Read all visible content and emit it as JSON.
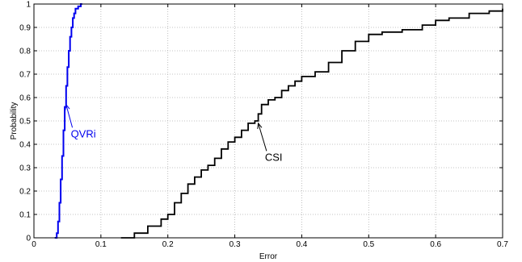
{
  "chart_data": {
    "type": "line",
    "title": "",
    "xlabel": "Error",
    "ylabel": "Probability",
    "xlim": [
      0,
      0.7
    ],
    "ylim": [
      0,
      1
    ],
    "xticks": [
      "0",
      "0.1",
      "0.2",
      "0.3",
      "0.4",
      "0.5",
      "0.6",
      "0.7"
    ],
    "yticks": [
      "0",
      "0.1",
      "0.2",
      "0.3",
      "0.4",
      "0.5",
      "0.6",
      "0.7",
      "0.8",
      "0.9",
      "1"
    ],
    "grid": true,
    "series": [
      {
        "name": "QVRi",
        "color": "#0000ee",
        "x": [
          0.031,
          0.034,
          0.036,
          0.038,
          0.04,
          0.042,
          0.044,
          0.046,
          0.048,
          0.05,
          0.052,
          0.054,
          0.056,
          0.058,
          0.06,
          0.062,
          0.066,
          0.07,
          0.072
        ],
        "y": [
          0.0,
          0.02,
          0.07,
          0.15,
          0.25,
          0.35,
          0.46,
          0.56,
          0.65,
          0.73,
          0.8,
          0.86,
          0.9,
          0.94,
          0.96,
          0.98,
          0.99,
          1.0,
          1.0
        ]
      },
      {
        "name": "CSI",
        "color": "#000000",
        "x": [
          0.13,
          0.15,
          0.17,
          0.19,
          0.2,
          0.21,
          0.22,
          0.23,
          0.24,
          0.25,
          0.26,
          0.27,
          0.28,
          0.29,
          0.3,
          0.31,
          0.32,
          0.33,
          0.335,
          0.34,
          0.35,
          0.36,
          0.37,
          0.38,
          0.39,
          0.4,
          0.42,
          0.44,
          0.46,
          0.48,
          0.5,
          0.52,
          0.55,
          0.58,
          0.6,
          0.62,
          0.65,
          0.68,
          0.7
        ],
        "y": [
          0.0,
          0.02,
          0.05,
          0.08,
          0.1,
          0.15,
          0.19,
          0.23,
          0.26,
          0.29,
          0.31,
          0.34,
          0.38,
          0.41,
          0.43,
          0.46,
          0.49,
          0.5,
          0.53,
          0.57,
          0.59,
          0.6,
          0.63,
          0.65,
          0.67,
          0.69,
          0.71,
          0.75,
          0.8,
          0.84,
          0.87,
          0.88,
          0.89,
          0.91,
          0.93,
          0.94,
          0.96,
          0.97,
          0.98
        ]
      }
    ],
    "annotations": [
      {
        "text": "QVRi",
        "color": "#0000ee",
        "series": 0,
        "at": [
          0.048,
          0.57
        ],
        "text_at": [
          0.055,
          0.43
        ]
      },
      {
        "text": "CSI",
        "color": "#000000",
        "series": 1,
        "at": [
          0.335,
          0.49
        ],
        "text_at": [
          0.345,
          0.33
        ]
      }
    ]
  }
}
